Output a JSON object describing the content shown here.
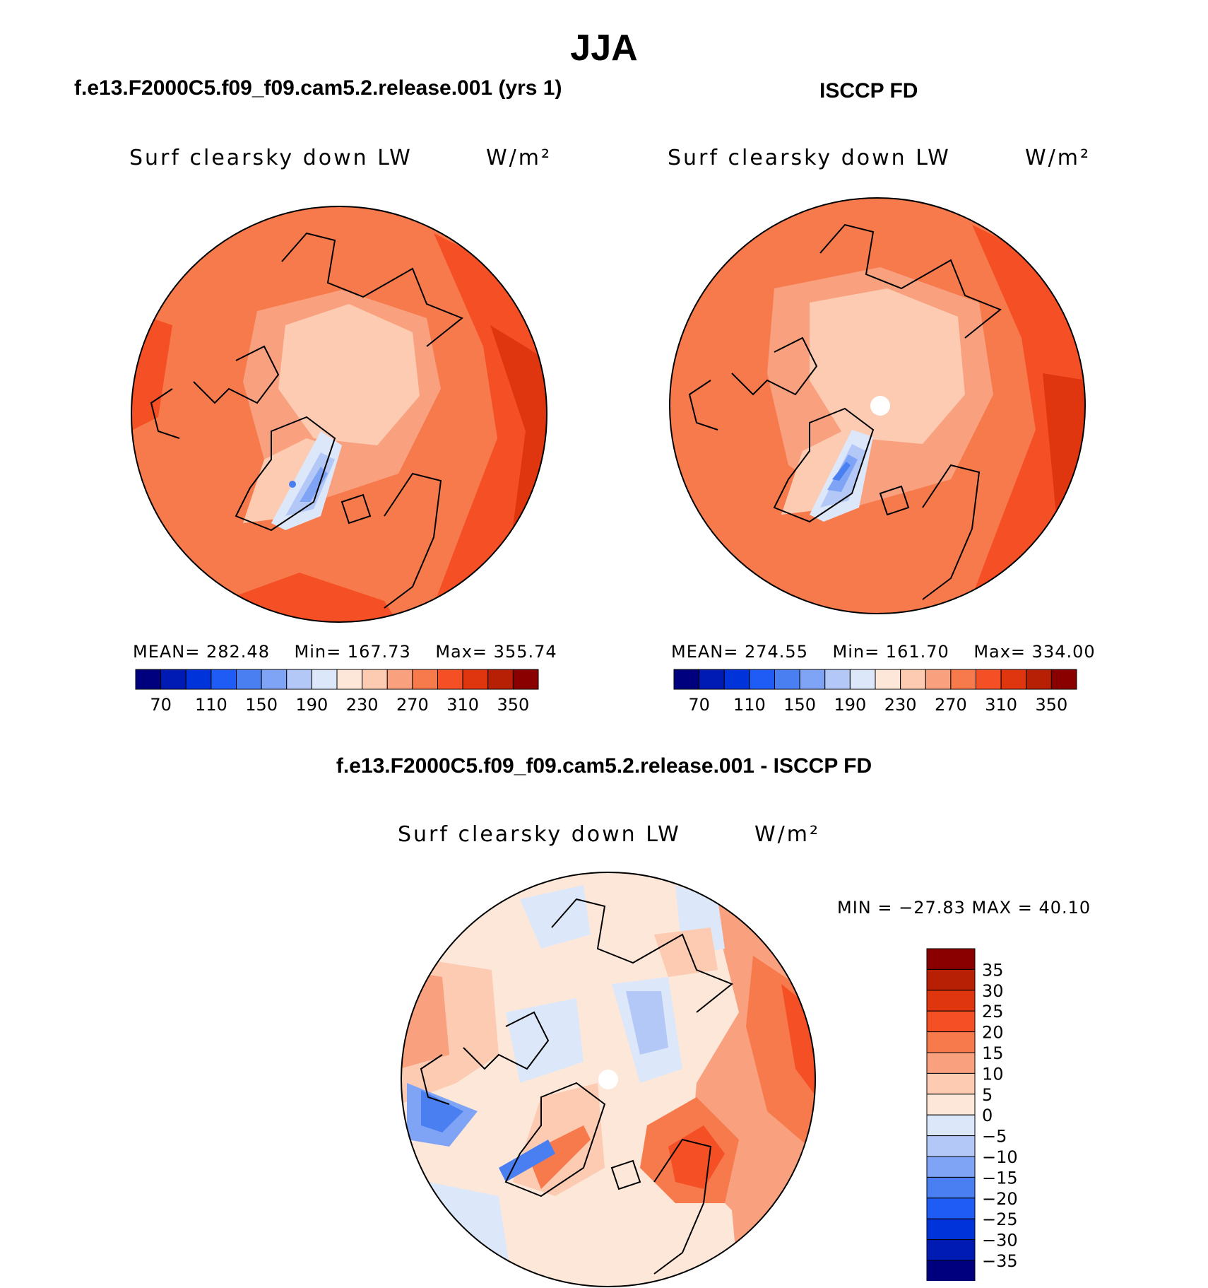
{
  "main_title": "JJA",
  "panels": {
    "left": {
      "heading": "f.e13.F2000C5.f09_f09.cam5.2.release.001 (yrs 1)",
      "variable": "Surf clearsky down LW",
      "unit": "W/m²",
      "stats": {
        "mean": "MEAN= 282.48",
        "min": "Min= 167.73",
        "max": "Max= 355.74"
      }
    },
    "right": {
      "heading": "ISCCP FD",
      "variable": "Surf clearsky down LW",
      "unit": "W/m²",
      "stats": {
        "mean": "MEAN= 274.55",
        "min": "Min= 161.70",
        "max": "Max= 334.00"
      }
    },
    "diff": {
      "heading": "f.e13.F2000C5.f09_f09.cam5.2.release.001 - ISCCP FD",
      "variable": "Surf clearsky down LW",
      "unit": "W/m²",
      "minmax": "MIN = −27.83 MAX =   40.10"
    }
  },
  "colorbar_abs": {
    "labels": [
      "70",
      "110",
      "150",
      "190",
      "230",
      "270",
      "310",
      "350"
    ],
    "colors": [
      "#00007f",
      "#001bb3",
      "#0033d9",
      "#1f5cf5",
      "#4a7ff2",
      "#7fa4f5",
      "#b3c8f7",
      "#dce8fa",
      "#fde7d9",
      "#fccbb2",
      "#f9a17f",
      "#f77a4d",
      "#f55025",
      "#e0360f",
      "#b82006",
      "#8a0000"
    ]
  },
  "colorbar_diff": {
    "labels": [
      "35",
      "30",
      "25",
      "20",
      "15",
      "10",
      "5",
      "0",
      "−5",
      "−10",
      "−15",
      "−20",
      "−25",
      "−30",
      "−35"
    ],
    "colors": [
      "#8a0000",
      "#b82006",
      "#e0360f",
      "#f55025",
      "#f77a4d",
      "#f9a17f",
      "#fccbb2",
      "#fde7d9",
      "#dce8fa",
      "#b3c8f7",
      "#7fa4f5",
      "#4a7ff2",
      "#1f5cf5",
      "#0033d9",
      "#001bb3",
      "#00007f"
    ]
  }
}
